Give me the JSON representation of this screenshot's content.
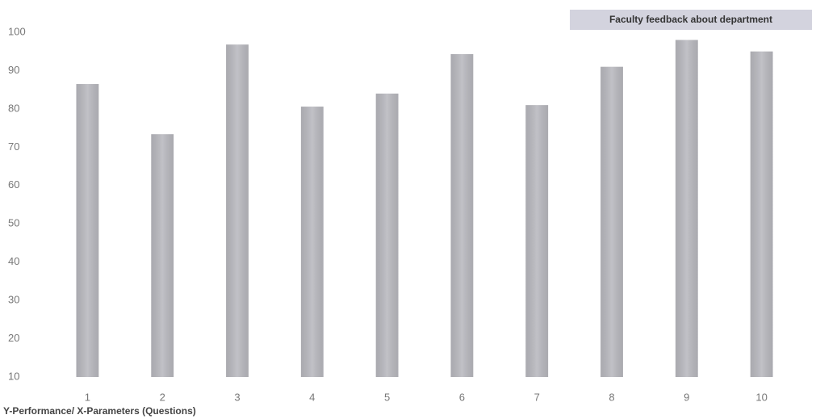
{
  "chart_data": {
    "type": "bar",
    "title": "Faculty feedback about department",
    "axis_label": "Y-Performance/ X-Parameters (Questions)",
    "categories": [
      "1",
      "2",
      "3",
      "4",
      "5",
      "6",
      "7",
      "8",
      "9",
      "10"
    ],
    "values": [
      86.5,
      73.4,
      96.8,
      80.6,
      84,
      94.3,
      81,
      91,
      98,
      95
    ],
    "color": "#b9b9bf",
    "ylim": [
      10,
      100
    ],
    "yticks": [
      10,
      20,
      30,
      40,
      50,
      60,
      70,
      80,
      90,
      100
    ],
    "grid": false
  }
}
